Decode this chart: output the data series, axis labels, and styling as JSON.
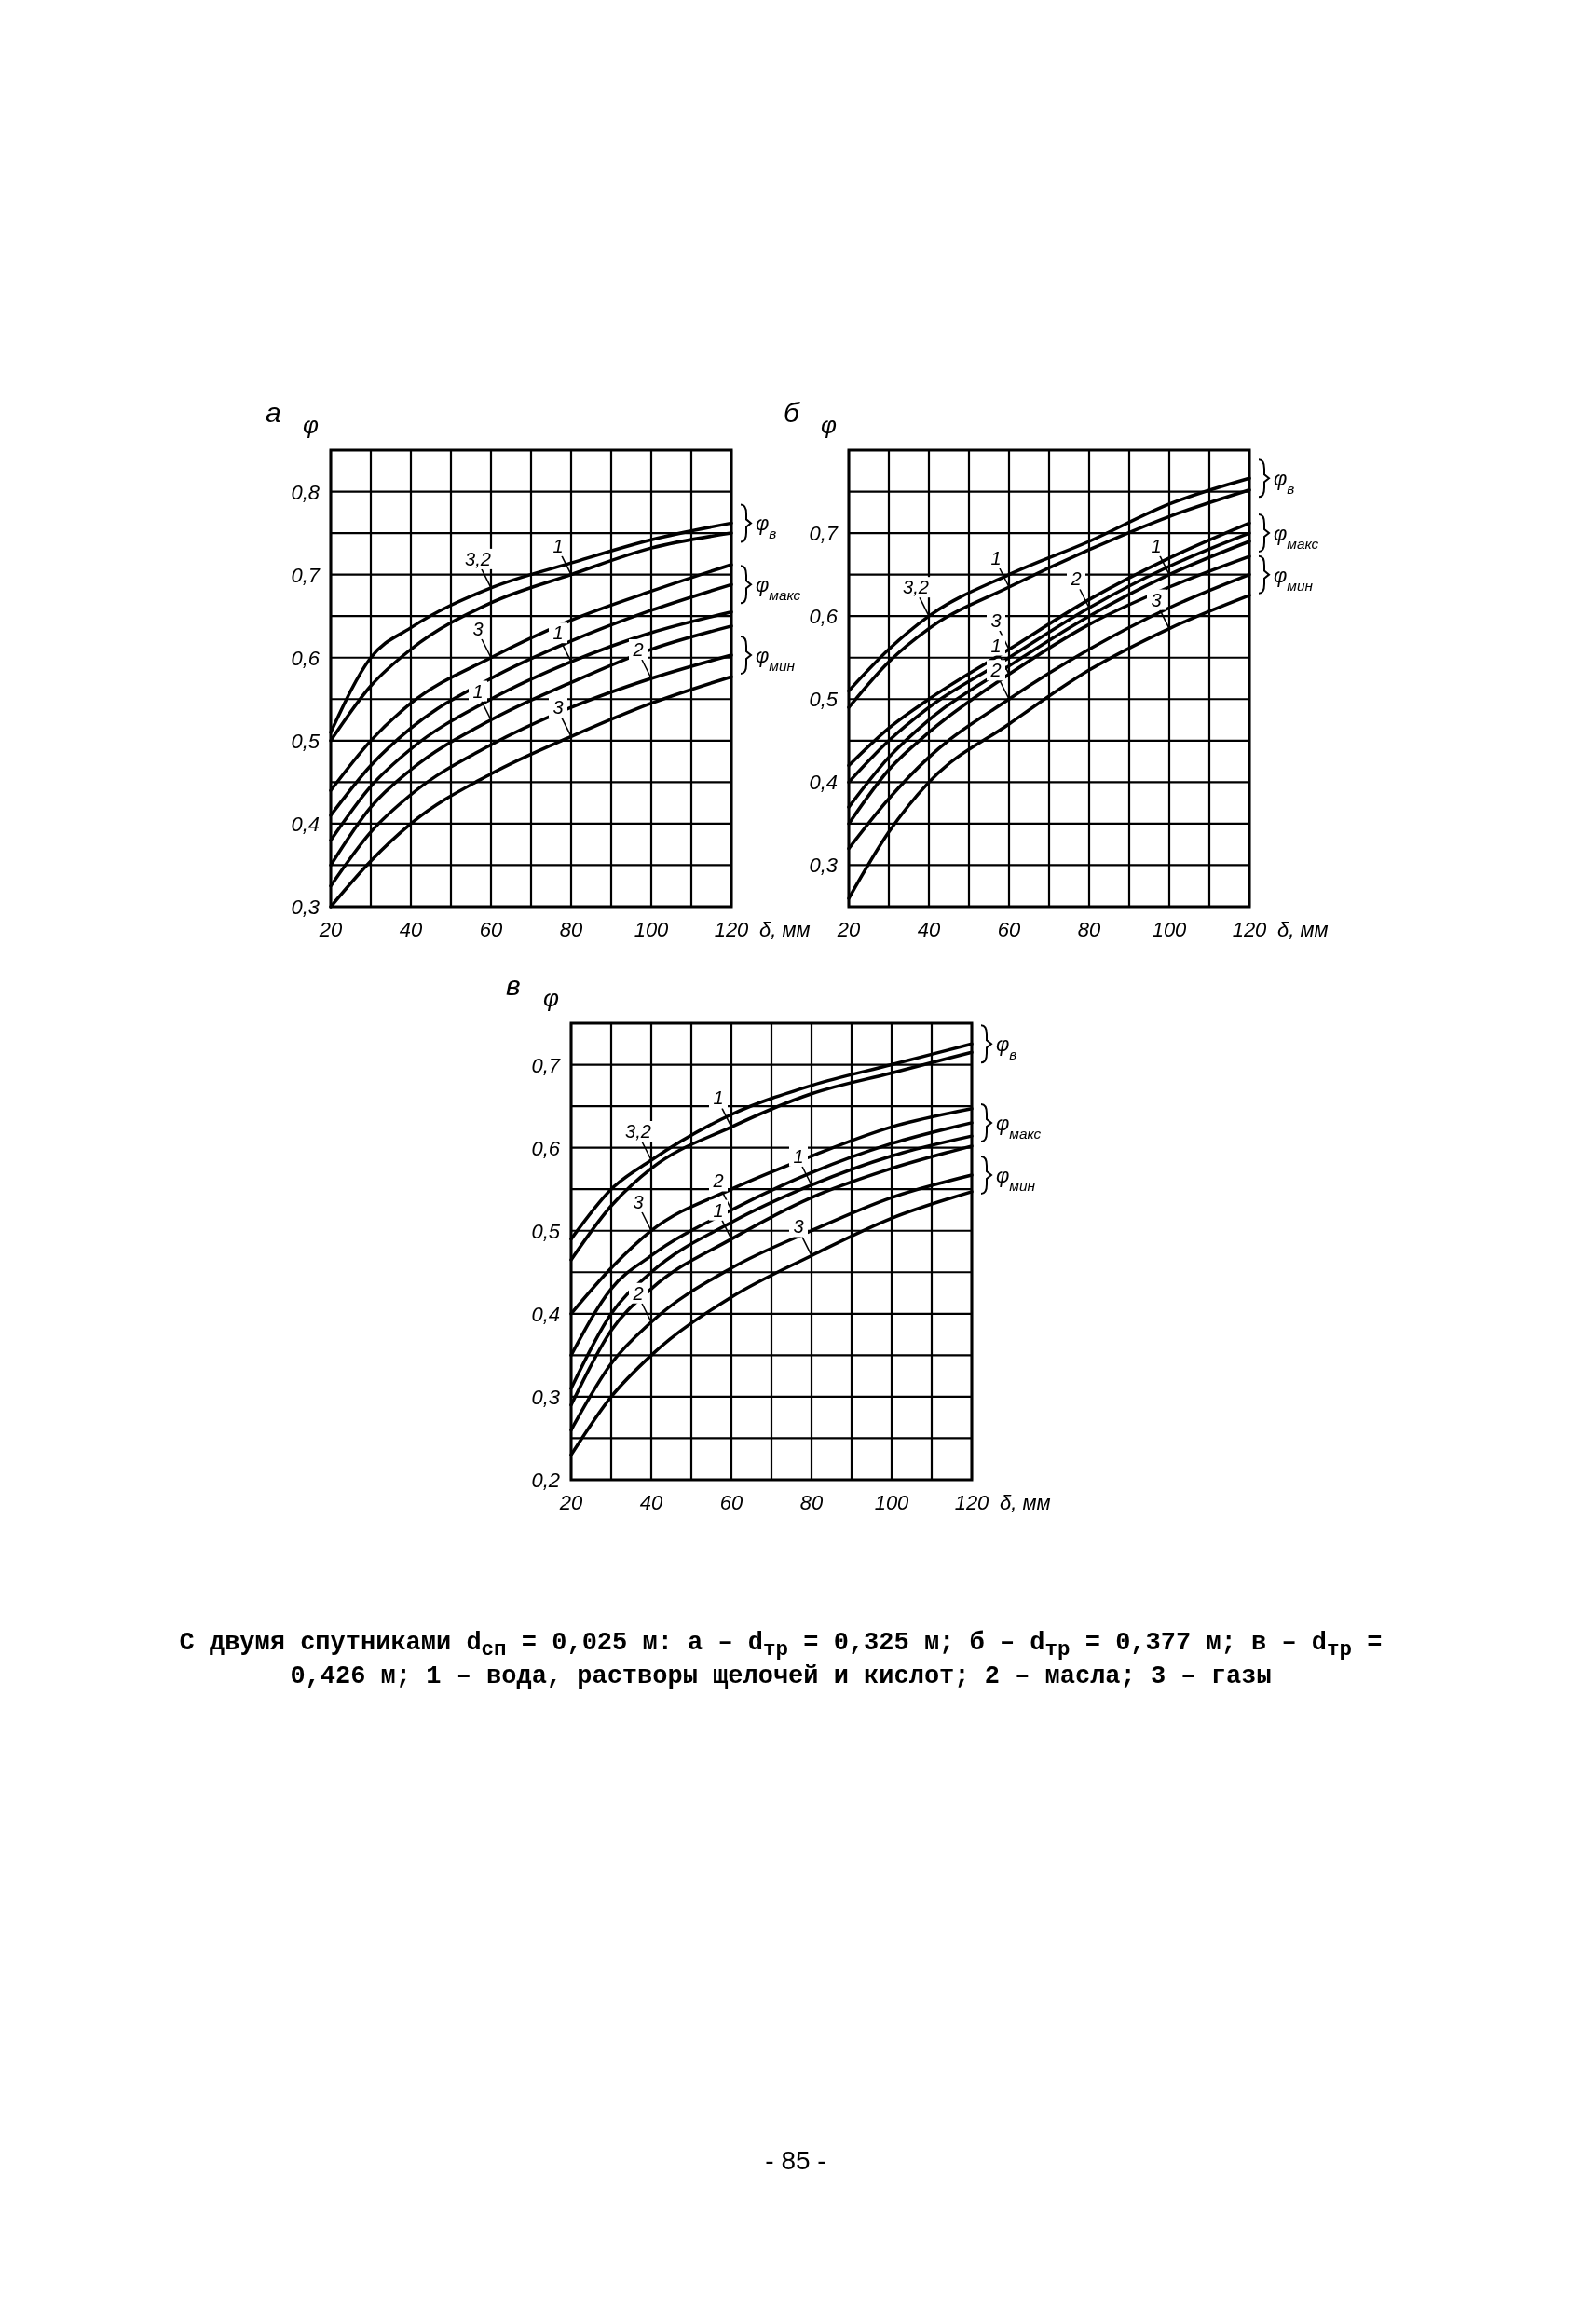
{
  "chart_data": [
    {
      "type": "line",
      "title": "а",
      "xlabel": "δ, мм",
      "ylabel": "φ",
      "x": [
        20,
        30,
        40,
        60,
        80,
        100,
        120
      ],
      "xlim": [
        20,
        120
      ],
      "ylim": [
        0.3,
        0.85
      ],
      "xticks": [
        20,
        {
          "value": 30,
          "label": null
        },
        40,
        {
          "value": 50,
          "label": null
        },
        60,
        {
          "value": 70,
          "label": null
        },
        80,
        {
          "value": 90,
          "label": null
        },
        100,
        {
          "value": 110,
          "label": null
        },
        120
      ],
      "yticks": [
        {
          "value": 0.3,
          "label": "0,3"
        },
        {
          "value": 0.35,
          "label": null
        },
        {
          "value": 0.4,
          "label": "0,4"
        },
        {
          "value": 0.45,
          "label": null
        },
        {
          "value": 0.5,
          "label": "0,5"
        },
        {
          "value": 0.55,
          "label": null
        },
        {
          "value": 0.6,
          "label": "0,6"
        },
        {
          "value": 0.65,
          "label": null
        },
        {
          "value": 0.7,
          "label": "0,7"
        },
        {
          "value": 0.75,
          "label": null
        },
        {
          "value": 0.8,
          "label": "0,8"
        }
      ],
      "grid": true,
      "marker": "none",
      "line_style": "solid",
      "series": [
        {
          "color": "#000000",
          "values": [
            0.51,
            0.6,
            0.636,
            0.684,
            0.714,
            0.742,
            0.762
          ]
        },
        {
          "color": "#000000",
          "values": [
            0.5,
            0.566,
            0.61,
            0.666,
            0.7,
            0.732,
            0.75
          ]
        },
        {
          "color": "#000000",
          "values": [
            0.44,
            0.5,
            0.545,
            0.6,
            0.645,
            0.68,
            0.712
          ]
        },
        {
          "color": "#000000",
          "values": [
            0.41,
            0.47,
            0.515,
            0.575,
            0.62,
            0.657,
            0.688
          ]
        },
        {
          "color": "#000000",
          "values": [
            0.38,
            0.445,
            0.49,
            0.55,
            0.595,
            0.63,
            0.655
          ]
        },
        {
          "color": "#000000",
          "values": [
            0.35,
            0.42,
            0.465,
            0.525,
            0.57,
            0.61,
            0.638
          ]
        },
        {
          "color": "#000000",
          "values": [
            0.325,
            0.39,
            0.435,
            0.495,
            0.54,
            0.575,
            0.603
          ]
        },
        {
          "color": "#000000",
          "values": [
            0.3,
            0.355,
            0.4,
            0.46,
            0.505,
            0.545,
            0.577
          ]
        }
      ],
      "annotations": [
        {
          "text": "3,2",
          "x": 60,
          "y": 0.684
        },
        {
          "text": "1",
          "x": 80,
          "y": 0.7
        },
        {
          "text": "3",
          "x": 60,
          "y": 0.6
        },
        {
          "text": "1",
          "x": 80,
          "y": 0.595
        },
        {
          "text": "1",
          "x": 60,
          "y": 0.525
        },
        {
          "text": "2",
          "x": 100,
          "y": 0.575
        },
        {
          "text": "3",
          "x": 80,
          "y": 0.505
        },
        {
          "text": "φ$_{в}$",
          "x": 120,
          "y": 0.762
        },
        {
          "text": "φ$_{макс}$",
          "x": 120,
          "y": 0.688
        },
        {
          "text": "φ$_{мин}$",
          "x": 120,
          "y": 0.603
        }
      ]
    },
    {
      "type": "line",
      "title": "б",
      "xlabel": "δ, мм",
      "ylabel": "φ",
      "x": [
        20,
        30,
        40,
        60,
        80,
        100,
        120
      ],
      "xlim": [
        20,
        120
      ],
      "ylim": [
        0.25,
        0.8
      ],
      "xticks": [
        20,
        {
          "value": 30,
          "label": null
        },
        40,
        {
          "value": 50,
          "label": null
        },
        60,
        {
          "value": 70,
          "label": null
        },
        80,
        {
          "value": 90,
          "label": null
        },
        100,
        {
          "value": 110,
          "label": null
        },
        120
      ],
      "yticks": [
        {
          "value": 0.25,
          "label": null
        },
        {
          "value": 0.3,
          "label": "0,3"
        },
        {
          "value": 0.35,
          "label": null
        },
        {
          "value": 0.4,
          "label": "0,4"
        },
        {
          "value": 0.45,
          "label": null
        },
        {
          "value": 0.5,
          "label": "0,5"
        },
        {
          "value": 0.55,
          "label": null
        },
        {
          "value": 0.6,
          "label": "0,6"
        },
        {
          "value": 0.65,
          "label": null
        },
        {
          "value": 0.7,
          "label": "0,7"
        },
        {
          "value": 0.75,
          "label": null
        }
      ],
      "grid": true,
      "marker": "none",
      "line_style": "solid",
      "series": [
        {
          "color": "#000000",
          "values": [
            0.51,
            0.56,
            0.6,
            0.65,
            0.69,
            0.735,
            0.766
          ]
        },
        {
          "color": "#000000",
          "values": [
            0.49,
            0.545,
            0.585,
            0.635,
            0.68,
            0.72,
            0.752
          ]
        },
        {
          "color": "#000000",
          "values": [
            0.42,
            0.465,
            0.5,
            0.56,
            0.62,
            0.67,
            0.712
          ]
        },
        {
          "color": "#000000",
          "values": [
            0.4,
            0.45,
            0.49,
            0.55,
            0.61,
            0.66,
            0.7
          ]
        },
        {
          "color": "#000000",
          "values": [
            0.37,
            0.43,
            0.475,
            0.54,
            0.6,
            0.65,
            0.69
          ]
        },
        {
          "color": "#000000",
          "values": [
            0.35,
            0.415,
            0.46,
            0.53,
            0.59,
            0.635,
            0.672
          ]
        },
        {
          "color": "#000000",
          "values": [
            0.32,
            0.38,
            0.43,
            0.5,
            0.56,
            0.61,
            0.65
          ]
        },
        {
          "color": "#000000",
          "values": [
            0.26,
            0.34,
            0.4,
            0.47,
            0.535,
            0.585,
            0.625
          ]
        }
      ],
      "annotations": [
        {
          "text": "3,2",
          "x": 40,
          "y": 0.6
        },
        {
          "text": "1",
          "x": 60,
          "y": 0.635
        },
        {
          "text": "3",
          "x": 60,
          "y": 0.56
        },
        {
          "text": "2",
          "x": 80,
          "y": 0.61
        },
        {
          "text": "1",
          "x": 100,
          "y": 0.65
        },
        {
          "text": "1",
          "x": 60,
          "y": 0.53
        },
        {
          "text": "2",
          "x": 60,
          "y": 0.5
        },
        {
          "text": "3",
          "x": 100,
          "y": 0.585
        },
        {
          "text": "φ$_{в}$",
          "x": 120,
          "y": 0.766
        },
        {
          "text": "φ$_{макс}$",
          "x": 120,
          "y": 0.7
        },
        {
          "text": "φ$_{мин}$",
          "x": 120,
          "y": 0.65
        }
      ]
    },
    {
      "type": "line",
      "title": "в",
      "xlabel": "δ, мм",
      "ylabel": "φ",
      "x": [
        20,
        30,
        40,
        60,
        80,
        100,
        120
      ],
      "xlim": [
        20,
        120
      ],
      "ylim": [
        0.2,
        0.75
      ],
      "xticks": [
        20,
        {
          "value": 30,
          "label": null
        },
        40,
        {
          "value": 50,
          "label": null
        },
        60,
        {
          "value": 70,
          "label": null
        },
        80,
        {
          "value": 90,
          "label": null
        },
        100,
        {
          "value": 110,
          "label": null
        },
        120
      ],
      "yticks": [
        {
          "value": 0.2,
          "label": "0,2"
        },
        {
          "value": 0.25,
          "label": null
        },
        {
          "value": 0.3,
          "label": "0,3"
        },
        {
          "value": 0.35,
          "label": null
        },
        {
          "value": 0.4,
          "label": "0,4"
        },
        {
          "value": 0.45,
          "label": null
        },
        {
          "value": 0.5,
          "label": "0,5"
        },
        {
          "value": 0.55,
          "label": null
        },
        {
          "value": 0.6,
          "label": "0,6"
        },
        {
          "value": 0.65,
          "label": null
        },
        {
          "value": 0.7,
          "label": "0,7"
        }
      ],
      "grid": true,
      "marker": "none",
      "line_style": "solid",
      "series": [
        {
          "color": "#000000",
          "values": [
            0.49,
            0.55,
            0.585,
            0.64,
            0.675,
            0.7,
            0.725
          ]
        },
        {
          "color": "#000000",
          "values": [
            0.465,
            0.53,
            0.575,
            0.625,
            0.665,
            0.69,
            0.715
          ]
        },
        {
          "color": "#000000",
          "values": [
            0.4,
            0.455,
            0.5,
            0.55,
            0.59,
            0.625,
            0.647
          ]
        },
        {
          "color": "#000000",
          "values": [
            0.35,
            0.43,
            0.47,
            0.525,
            0.57,
            0.605,
            0.63
          ]
        },
        {
          "color": "#000000",
          "values": [
            0.31,
            0.4,
            0.45,
            0.51,
            0.555,
            0.59,
            0.614
          ]
        },
        {
          "color": "#000000",
          "values": [
            0.29,
            0.38,
            0.43,
            0.49,
            0.54,
            0.575,
            0.602
          ]
        },
        {
          "color": "#000000",
          "values": [
            0.26,
            0.34,
            0.39,
            0.455,
            0.5,
            0.54,
            0.567
          ]
        },
        {
          "color": "#000000",
          "values": [
            0.23,
            0.3,
            0.35,
            0.42,
            0.47,
            0.515,
            0.547
          ]
        }
      ],
      "annotations": [
        {
          "text": "3,2",
          "x": 40,
          "y": 0.585
        },
        {
          "text": "1",
          "x": 60,
          "y": 0.625
        },
        {
          "text": "3",
          "x": 40,
          "y": 0.5
        },
        {
          "text": "2",
          "x": 60,
          "y": 0.525
        },
        {
          "text": "1",
          "x": 80,
          "y": 0.555
        },
        {
          "text": "1",
          "x": 60,
          "y": 0.49
        },
        {
          "text": "2",
          "x": 40,
          "y": 0.39
        },
        {
          "text": "3",
          "x": 80,
          "y": 0.47
        },
        {
          "text": "φ$_{в}$",
          "x": 120,
          "y": 0.725
        },
        {
          "text": "φ$_{макс}$",
          "x": 120,
          "y": 0.63
        },
        {
          "text": "φ$_{мин}$",
          "x": 120,
          "y": 0.567
        },
        "С двумя спутниками d$_{сп}$ = 0,025 м: а – d$_{тр}$ = 0,325 м; б – d$_{тр}$ = 0,377 м; в – d$_{тр}$ = 0,426 м; 1 – вода, растворы щелочей и кислот; 2 – масла; 3 – газы",
        "- 85 -"
      ]
    }
  ]
}
